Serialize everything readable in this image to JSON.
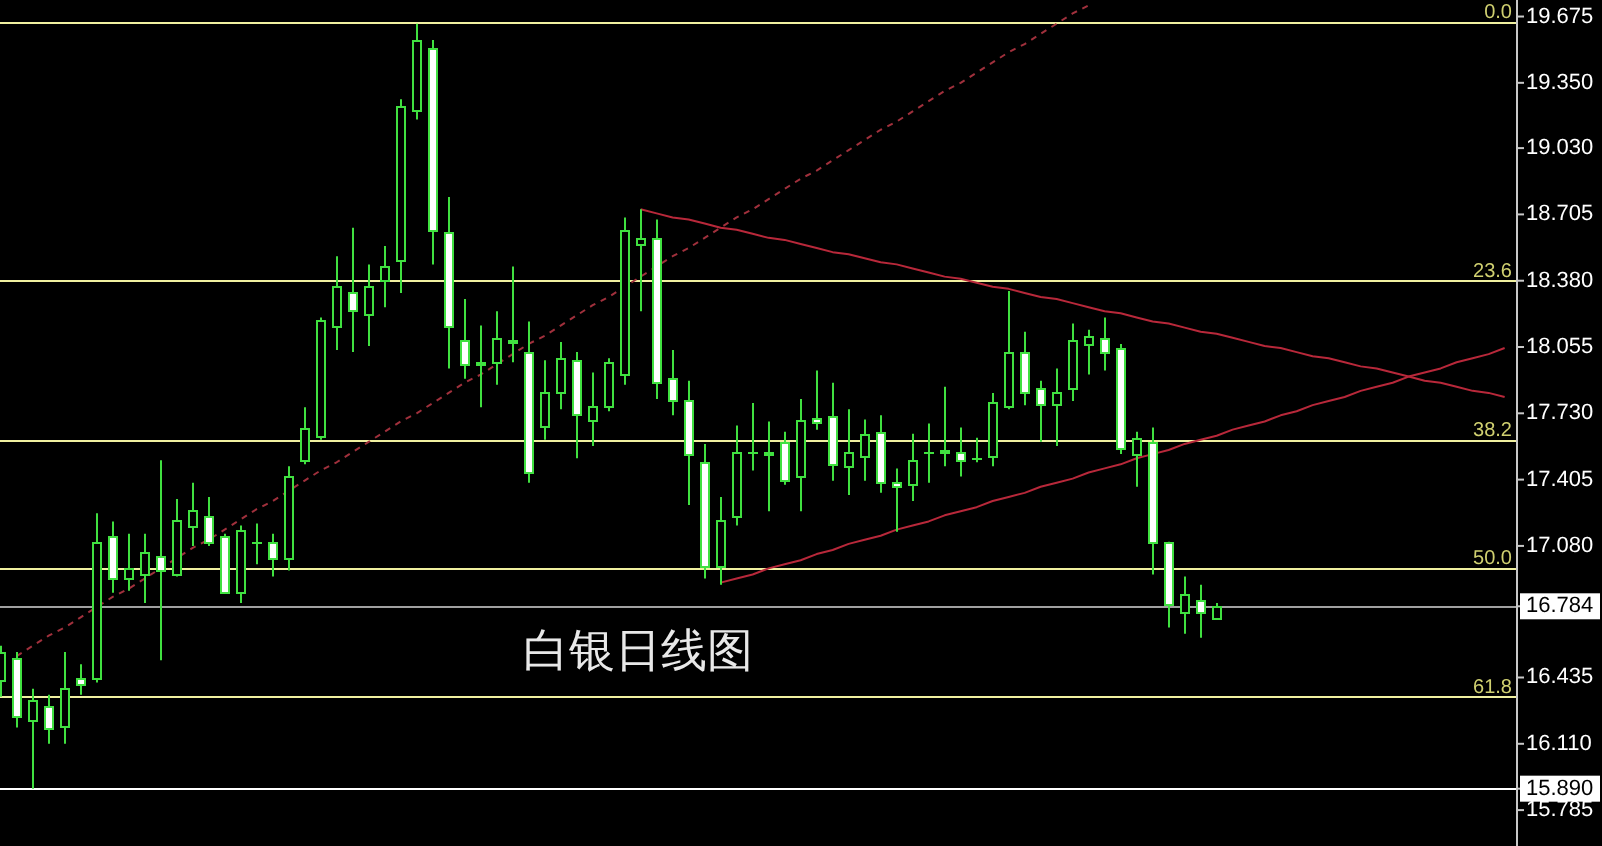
{
  "chart_data": {
    "type": "candlestick",
    "title": "白银日线图",
    "categories": [
      null,
      null,
      null,
      null,
      null,
      null,
      null,
      null,
      null,
      null,
      null,
      null,
      null,
      null,
      null,
      null,
      null,
      null,
      null,
      null,
      null,
      null,
      null,
      null,
      null,
      null,
      null,
      null,
      null,
      null,
      null,
      null,
      null,
      null,
      null,
      null,
      null,
      null,
      null,
      null,
      null,
      null,
      null,
      null,
      null,
      null,
      null,
      null,
      null,
      null,
      null,
      null,
      null,
      null,
      null,
      null,
      null,
      null,
      null,
      null,
      null,
      null,
      null,
      null,
      null,
      null,
      null,
      null,
      null,
      null,
      null,
      null,
      null,
      null,
      null,
      null,
      null,
      null,
      null,
      null,
      null,
      null,
      null,
      null,
      null,
      null,
      null,
      null,
      null,
      null,
      null,
      null,
      null,
      null,
      null
    ],
    "color": "#40e040",
    "ohlc": [
      [
        16.42,
        16.59,
        16.34,
        16.56
      ],
      [
        16.53,
        16.56,
        16.19,
        16.25
      ],
      [
        16.23,
        16.38,
        15.89,
        16.32
      ],
      [
        16.3,
        16.35,
        16.11,
        16.19
      ],
      [
        16.2,
        16.56,
        16.11,
        16.38
      ],
      [
        16.43,
        16.5,
        16.35,
        16.4
      ],
      [
        16.43,
        17.24,
        16.41,
        17.1
      ],
      [
        17.13,
        17.2,
        16.85,
        16.92
      ],
      [
        16.92,
        17.14,
        16.86,
        16.97
      ],
      [
        16.94,
        17.14,
        16.8,
        17.05
      ],
      [
        17.03,
        17.5,
        16.52,
        16.96
      ],
      [
        16.94,
        17.31,
        16.93,
        17.21
      ],
      [
        17.18,
        17.39,
        17.08,
        17.26
      ],
      [
        17.23,
        17.32,
        17.08,
        17.1
      ],
      [
        17.13,
        17.14,
        16.85,
        16.85
      ],
      [
        16.85,
        17.18,
        16.8,
        17.16
      ],
      [
        17.1,
        17.19,
        16.99,
        17.1
      ],
      [
        17.1,
        17.14,
        16.93,
        17.02
      ],
      [
        17.02,
        17.47,
        16.96,
        17.42
      ],
      [
        17.5,
        17.76,
        17.48,
        17.66
      ],
      [
        17.62,
        18.2,
        17.6,
        18.19
      ],
      [
        18.16,
        18.5,
        18.04,
        18.35
      ],
      [
        18.32,
        18.64,
        18.03,
        18.24
      ],
      [
        18.22,
        18.46,
        18.06,
        18.35
      ],
      [
        18.38,
        18.55,
        18.25,
        18.45
      ],
      [
        18.48,
        19.27,
        18.32,
        19.24
      ],
      [
        19.22,
        19.64,
        19.17,
        19.56
      ],
      [
        19.52,
        19.56,
        18.46,
        18.63
      ],
      [
        18.62,
        18.79,
        17.95,
        18.16
      ],
      [
        18.09,
        18.29,
        17.9,
        17.97
      ],
      [
        17.97,
        18.16,
        17.76,
        17.98
      ],
      [
        17.98,
        18.23,
        17.87,
        18.1
      ],
      [
        18.08,
        18.45,
        17.98,
        18.09
      ],
      [
        18.03,
        18.18,
        17.39,
        17.44
      ],
      [
        17.67,
        17.99,
        17.6,
        17.83
      ],
      [
        17.83,
        18.08,
        17.75,
        18.0
      ],
      [
        17.99,
        18.03,
        17.51,
        17.73
      ],
      [
        17.7,
        17.93,
        17.57,
        17.77
      ],
      [
        17.77,
        18.0,
        17.74,
        17.98
      ],
      [
        17.92,
        18.69,
        17.87,
        18.63
      ],
      [
        18.56,
        18.73,
        18.23,
        18.59
      ],
      [
        18.59,
        18.68,
        17.8,
        17.88
      ],
      [
        17.9,
        18.04,
        17.72,
        17.8
      ],
      [
        17.8,
        17.89,
        17.28,
        17.53
      ],
      [
        17.49,
        17.58,
        16.92,
        16.98
      ],
      [
        16.98,
        17.32,
        16.89,
        17.21
      ],
      [
        17.23,
        17.67,
        17.18,
        17.54
      ],
      [
        17.54,
        17.78,
        17.45,
        17.54
      ],
      [
        17.53,
        17.69,
        17.25,
        17.54
      ],
      [
        17.59,
        17.64,
        17.38,
        17.4
      ],
      [
        17.42,
        17.8,
        17.25,
        17.7
      ],
      [
        17.71,
        17.94,
        17.65,
        17.69
      ],
      [
        17.72,
        17.88,
        17.4,
        17.48
      ],
      [
        17.47,
        17.75,
        17.33,
        17.54
      ],
      [
        17.52,
        17.7,
        17.4,
        17.63
      ],
      [
        17.64,
        17.72,
        17.34,
        17.39
      ],
      [
        17.39,
        17.46,
        17.15,
        17.37
      ],
      [
        17.38,
        17.63,
        17.3,
        17.5
      ],
      [
        17.54,
        17.68,
        17.39,
        17.54
      ],
      [
        17.54,
        17.86,
        17.47,
        17.55
      ],
      [
        17.54,
        17.66,
        17.42,
        17.5
      ],
      [
        17.51,
        17.61,
        17.49,
        17.51
      ],
      [
        17.52,
        17.83,
        17.47,
        17.79
      ],
      [
        17.77,
        18.33,
        17.75,
        18.03
      ],
      [
        18.03,
        18.13,
        17.77,
        17.83
      ],
      [
        17.85,
        17.89,
        17.59,
        17.78
      ],
      [
        17.78,
        17.95,
        17.57,
        17.83
      ],
      [
        17.85,
        18.17,
        17.79,
        18.09
      ],
      [
        18.07,
        18.14,
        17.92,
        18.11
      ],
      [
        18.1,
        18.2,
        17.94,
        18.03
      ],
      [
        18.05,
        18.07,
        17.53,
        17.56
      ],
      [
        17.53,
        17.64,
        17.37,
        17.61
      ],
      [
        17.59,
        17.66,
        16.94,
        17.1
      ],
      [
        17.1,
        17.1,
        16.68,
        16.8
      ],
      [
        16.76,
        16.93,
        16.65,
        16.84
      ],
      [
        16.81,
        16.89,
        16.63,
        16.76
      ],
      [
        16.73,
        16.8,
        16.73,
        16.784
      ],
      null,
      null,
      null,
      null,
      null,
      null,
      null,
      null,
      null,
      null,
      null,
      null,
      null,
      null,
      null,
      null,
      null,
      null
    ],
    "colors": [
      "#000000",
      "#ffffff",
      "#000000",
      "#ffffff",
      "#000000",
      "#ffffff",
      "#000000",
      "#ffffff",
      "#000000",
      "#000000",
      "#ffffff",
      "#000000",
      "#000000",
      "#ffffff",
      "#ffffff",
      "#000000",
      "#40e040",
      "#ffffff",
      "#000000",
      "#000000",
      "#000000",
      "#000000",
      "#ffffff",
      "#000000",
      "#000000",
      "#000000",
      "#000000",
      "#ffffff",
      "#ffffff",
      "#ffffff",
      "#000000",
      "#000000",
      "#000000",
      "#ffffff",
      "#000000",
      "#000000",
      "#ffffff",
      "#000000",
      "#000000",
      "#000000",
      "#000000",
      "#ffffff",
      "#ffffff",
      "#ffffff",
      "#ffffff",
      "#000000",
      "#000000",
      "#40e040",
      "#000000",
      "#ffffff",
      "#000000",
      "#ffffff",
      "#ffffff",
      "#000000",
      "#000000",
      "#ffffff",
      "#ffffff",
      "#000000",
      "#40e040",
      "#000000",
      "#ffffff",
      "#40e040",
      "#000000",
      "#000000",
      "#ffffff",
      "#ffffff",
      "#000000",
      "#000000",
      "#000000",
      "#ffffff",
      "#ffffff",
      "#000000",
      "#ffffff",
      "#ffffff",
      "#000000",
      "#ffffff",
      "#000000",
      null,
      null,
      null,
      null,
      null,
      null,
      null,
      null,
      null,
      null,
      null,
      null,
      null,
      null,
      null,
      null,
      null,
      null
    ],
    "series": [
      {
        "type": "line",
        "color": "#a0303c",
        "line_style": "dashed",
        "values": [
          null,
          16.54,
          16.59,
          16.64,
          16.68,
          16.73,
          16.78,
          16.83,
          16.87,
          16.92,
          16.97,
          17.02,
          17.07,
          17.11,
          17.16,
          17.21,
          17.26,
          17.3,
          17.35,
          17.4,
          17.45,
          17.49,
          17.54,
          17.59,
          17.64,
          17.69,
          17.73,
          17.78,
          17.83,
          17.88,
          17.92,
          17.97,
          18.02,
          18.07,
          18.11,
          18.16,
          18.21,
          18.26,
          18.3,
          18.35,
          18.4,
          18.45,
          18.5,
          18.54,
          18.59,
          18.64,
          18.69,
          18.73,
          18.78,
          18.83,
          18.88,
          18.92,
          18.97,
          19.02,
          19.07,
          19.12,
          19.16,
          19.21,
          19.26,
          19.31,
          19.35,
          19.4,
          19.45,
          19.5,
          19.54,
          19.59,
          19.64,
          19.69,
          19.73,
          null,
          null,
          null,
          null,
          null,
          null,
          null,
          null,
          null,
          null,
          null,
          null,
          null,
          null,
          null,
          null,
          null,
          null,
          null,
          null,
          null,
          null,
          null,
          null,
          null,
          null
        ]
      },
      {
        "type": "line",
        "color": "#b8283a",
        "values": [
          null,
          null,
          null,
          null,
          null,
          null,
          null,
          null,
          null,
          null,
          null,
          null,
          null,
          null,
          null,
          null,
          null,
          null,
          null,
          null,
          null,
          null,
          null,
          null,
          null,
          null,
          null,
          null,
          null,
          null,
          null,
          null,
          null,
          null,
          null,
          null,
          null,
          null,
          null,
          null,
          18.73,
          18.71,
          18.69,
          18.68,
          18.66,
          18.64,
          18.63,
          18.61,
          18.59,
          18.58,
          18.56,
          18.54,
          18.52,
          18.51,
          18.49,
          18.47,
          18.46,
          18.44,
          18.42,
          18.4,
          18.39,
          18.37,
          18.35,
          18.34,
          18.32,
          18.3,
          18.29,
          18.27,
          18.25,
          18.23,
          18.22,
          18.2,
          18.18,
          18.17,
          18.15,
          18.13,
          18.12,
          18.1,
          18.08,
          18.06,
          18.05,
          18.03,
          18.01,
          18.0,
          17.98,
          17.96,
          17.95,
          17.93,
          17.91,
          17.89,
          17.88,
          17.86,
          17.84,
          17.83,
          17.81
        ]
      },
      {
        "type": "line",
        "color": "#b8283a",
        "values": [
          null,
          null,
          null,
          null,
          null,
          null,
          null,
          null,
          null,
          null,
          null,
          null,
          null,
          null,
          null,
          null,
          null,
          null,
          null,
          null,
          null,
          null,
          null,
          null,
          null,
          null,
          null,
          null,
          null,
          null,
          null,
          null,
          null,
          null,
          null,
          null,
          null,
          null,
          null,
          null,
          null,
          null,
          null,
          null,
          null,
          16.9,
          16.92,
          16.94,
          16.97,
          16.99,
          17.01,
          17.04,
          17.06,
          17.09,
          17.11,
          17.13,
          17.16,
          17.18,
          17.2,
          17.23,
          17.25,
          17.27,
          17.3,
          17.32,
          17.34,
          17.37,
          17.39,
          17.41,
          17.44,
          17.46,
          17.48,
          17.51,
          17.53,
          17.55,
          17.58,
          17.6,
          17.62,
          17.65,
          17.67,
          17.69,
          17.72,
          17.74,
          17.77,
          17.79,
          17.81,
          17.84,
          17.86,
          17.88,
          17.91,
          17.93,
          17.95,
          17.98,
          18.0,
          18.02,
          18.05
        ]
      }
    ],
    "ylim": [
      15.609,
      19.756
    ],
    "yticks": [
      19.675,
      {
        "value": 19.35,
        "label": "19.350"
      },
      {
        "value": 19.03,
        "label": "19.030"
      },
      18.705,
      {
        "value": 18.38,
        "label": "18.380"
      },
      18.055,
      {
        "value": 17.73,
        "label": "17.730"
      },
      17.405,
      {
        "value": 17.08,
        "label": "17.080"
      },
      16.435,
      {
        "value": 16.11,
        "label": "16.110"
      },
      15.785
    ],
    "ref_lines": [
      {
        "axis": "y",
        "value": 19.65,
        "color": "#f0f0a0"
      },
      {
        "axis": "y",
        "value": 18.38,
        "color": "#f0f0a0"
      },
      {
        "axis": "y",
        "value": 17.6,
        "color": "#f0f0a0"
      },
      {
        "axis": "y",
        "value": 16.97,
        "color": "#f0f0a0"
      },
      {
        "axis": "y",
        "value": 16.34,
        "color": "#f0f0a0"
      },
      {
        "axis": "y",
        "value": 16.784,
        "label": "16.784",
        "color": "#a0a0a0"
      },
      {
        "axis": "y",
        "value": 15.89,
        "label": "15.890",
        "color": "#ffffff"
      }
    ],
    "annotations": [
      {
        "text": "0.0",
        "y": 19.65
      },
      {
        "text": "23.6",
        "y": 18.38
      },
      {
        "text": "38.2",
        "y": 17.6
      },
      {
        "text": "50.0",
        "y": 16.97
      },
      {
        "text": "61.8",
        "y": 16.34
      }
    ]
  }
}
